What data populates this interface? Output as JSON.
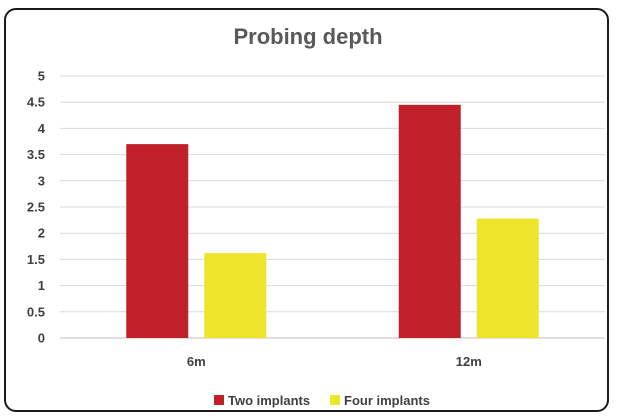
{
  "chart_data": {
    "type": "bar",
    "title": "Probing depth",
    "categories": [
      "6m",
      "12m"
    ],
    "series": [
      {
        "name": "Two implants",
        "values": [
          3.7,
          4.45
        ],
        "color": "#c0202a"
      },
      {
        "name": "Four implants",
        "values": [
          1.62,
          2.28
        ],
        "color": "#eee42a"
      }
    ],
    "yticks": [
      "0",
      "0.5",
      "1",
      "1.5",
      "2",
      "2.5",
      "3",
      "3.5",
      "4",
      "4.5",
      "5"
    ],
    "ylim": [
      0,
      5
    ],
    "grid": true,
    "legend_position": "bottom"
  }
}
